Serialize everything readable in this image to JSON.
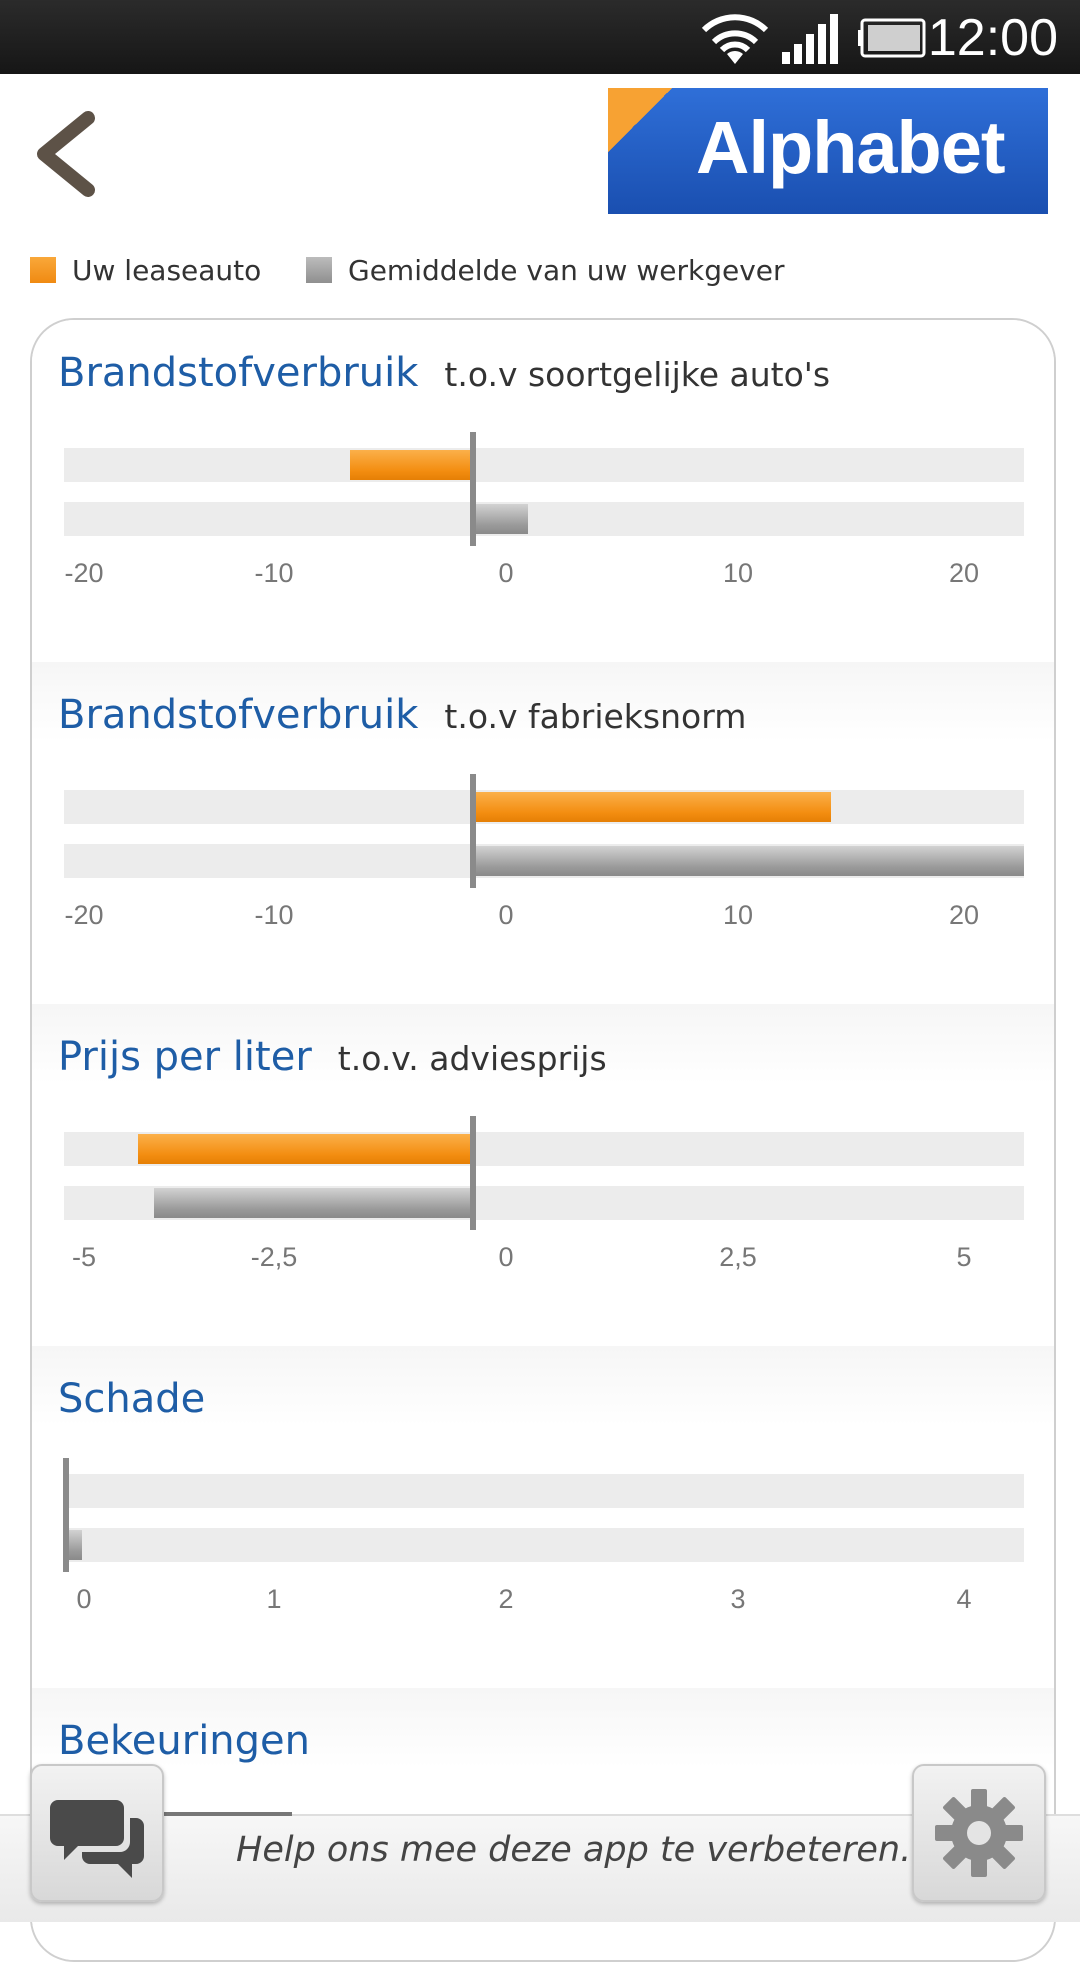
{
  "status_bar": {
    "time": "12:00"
  },
  "header": {
    "logo_text": "Alphabet",
    "back_icon": "chevron-left-icon"
  },
  "legend": {
    "items": [
      {
        "label": "Uw leaseauto",
        "color": "#f39418"
      },
      {
        "label": "Gemiddelde van uw werkgever",
        "color": "#9a9a9a"
      }
    ]
  },
  "sections": [
    {
      "title": "Brandstofverbruik",
      "subtitle": "t.o.v soortgelijke auto's",
      "ticks": [
        "-20",
        "-10",
        "0",
        "10",
        "20"
      ]
    },
    {
      "title": "Brandstofverbruik",
      "subtitle": "t.o.v fabrieksnorm",
      "ticks": [
        "-20",
        "-10",
        "0",
        "10",
        "20"
      ]
    },
    {
      "title": "Prijs per liter",
      "subtitle": "t.o.v. adviesprijs",
      "ticks": [
        "-5",
        "-2,5",
        "0",
        "2,5",
        "5"
      ]
    },
    {
      "title": "Schade",
      "subtitle": "",
      "ticks": [
        "0",
        "1",
        "2",
        "3",
        "4"
      ]
    },
    {
      "title": "Bekeuringen",
      "subtitle": ""
    }
  ],
  "chart_data": [
    {
      "type": "bar",
      "title": "Brandstofverbruik",
      "subtitle": "t.o.v soortgelijke auto's",
      "xlim": [
        -20,
        20
      ],
      "series": [
        {
          "name": "Uw leaseauto",
          "values": [
            -6
          ]
        },
        {
          "name": "Gemiddelde van uw werkgever",
          "values": [
            2
          ]
        }
      ]
    },
    {
      "type": "bar",
      "title": "Brandstofverbruik",
      "subtitle": "t.o.v fabrieksnorm",
      "xlim": [
        -20,
        20
      ],
      "series": [
        {
          "name": "Uw leaseauto",
          "values": [
            13
          ]
        },
        {
          "name": "Gemiddelde van uw werkgever",
          "values": [
            21
          ]
        }
      ]
    },
    {
      "type": "bar",
      "title": "Prijs per liter",
      "subtitle": "t.o.v. adviesprijs",
      "xlim": [
        -5,
        5
      ],
      "series": [
        {
          "name": "Uw leaseauto",
          "values": [
            -4.1
          ]
        },
        {
          "name": "Gemiddelde van uw werkgever",
          "values": [
            -3.9
          ]
        }
      ]
    },
    {
      "type": "bar",
      "title": "Schade",
      "xlim": [
        0,
        4
      ],
      "series": [
        {
          "name": "Uw leaseauto",
          "values": [
            0
          ]
        },
        {
          "name": "Gemiddelde van uw werkgever",
          "values": [
            0.05
          ]
        }
      ]
    }
  ],
  "footer": {
    "help_text": "Help ons mee deze app te verbeteren.",
    "chat_icon": "chat-bubbles-icon",
    "settings_icon": "gear-icon"
  }
}
